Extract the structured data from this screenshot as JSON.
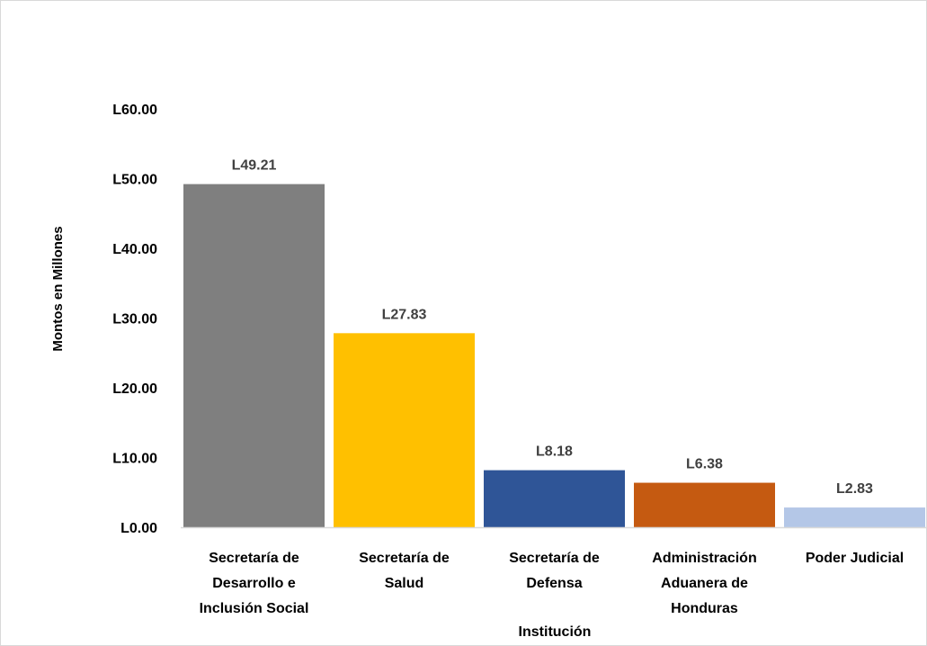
{
  "chart_data": {
    "type": "bar",
    "title": "",
    "xlabel": "Institución",
    "ylabel": "Montos en Millones",
    "ylim": [
      0,
      60
    ],
    "yticks": [
      {
        "value": 0,
        "label": "L0.00"
      },
      {
        "value": 10,
        "label": "L10.00"
      },
      {
        "value": 20,
        "label": "L20.00"
      },
      {
        "value": 30,
        "label": "L30.00"
      },
      {
        "value": 40,
        "label": "L40.00"
      },
      {
        "value": 50,
        "label": "L50.00"
      },
      {
        "value": 60,
        "label": "L60.00"
      }
    ],
    "categories": [
      [
        "Secretaría de",
        "Desarrollo e",
        "Inclusión Social"
      ],
      [
        "Secretaría de",
        "Salud"
      ],
      [
        "Secretaría de",
        "Defensa"
      ],
      [
        "Administración",
        "Aduanera de",
        "Honduras"
      ],
      [
        "Poder Judicial"
      ]
    ],
    "values": [
      49.21,
      27.83,
      8.18,
      6.38,
      2.83
    ],
    "data_labels": [
      "L49.21",
      "L27.83",
      "L8.18",
      "L6.38",
      "L2.83"
    ],
    "colors": [
      "#7f7f7f",
      "#ffc000",
      "#2f5597",
      "#c55a11",
      "#b4c7e7"
    ],
    "grid": false,
    "legend": "none"
  }
}
